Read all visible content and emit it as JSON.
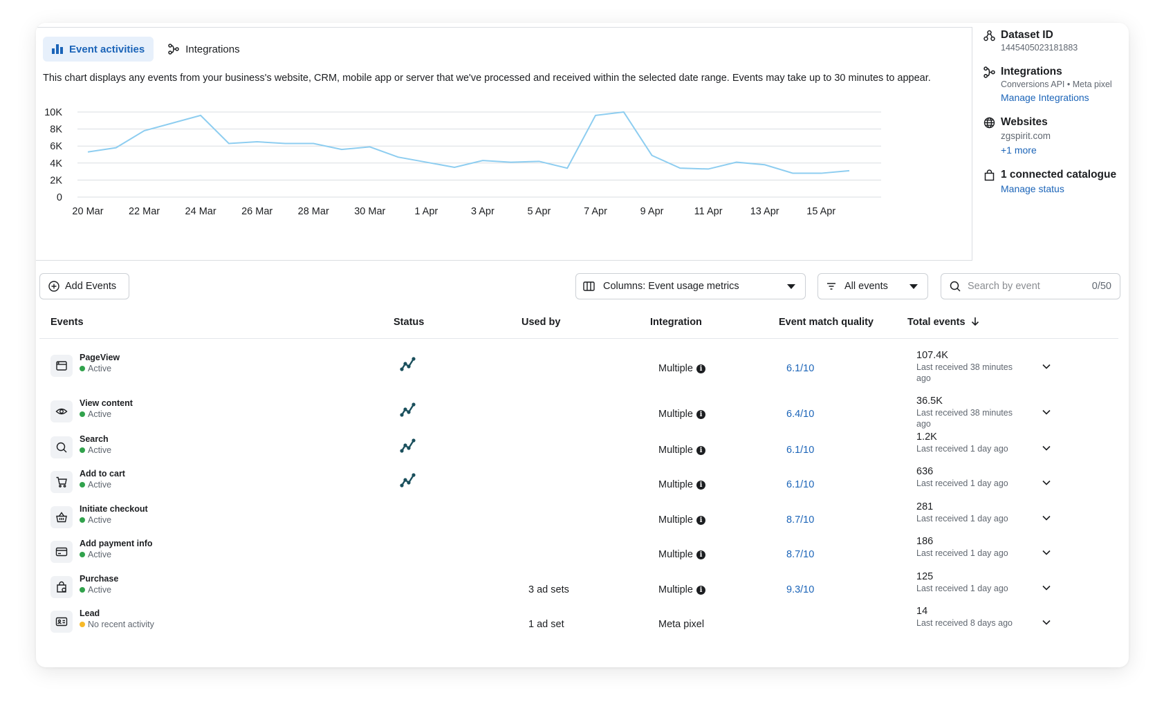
{
  "tabs": [
    {
      "label": "Event activities",
      "icon": "bar-chart-icon"
    },
    {
      "label": "Integrations",
      "icon": "integration-icon"
    }
  ],
  "description": "This chart displays any events from your business's website, CRM, mobile app or server that we've processed and received within the selected date range. Events may take up to 30 minutes to appear.",
  "chart_data": {
    "type": "line",
    "x": [
      "20 Mar",
      "21 Mar",
      "22 Mar",
      "23 Mar",
      "24 Mar",
      "25 Mar",
      "26 Mar",
      "27 Mar",
      "28 Mar",
      "29 Mar",
      "30 Mar",
      "31 Mar",
      "1 Apr",
      "2 Apr",
      "3 Apr",
      "4 Apr",
      "5 Apr",
      "6 Apr",
      "7 Apr",
      "8 Apr",
      "9 Apr",
      "10 Apr",
      "11 Apr",
      "12 Apr",
      "13 Apr",
      "14 Apr",
      "15 Apr",
      "16 Apr"
    ],
    "x_ticks": [
      "20 Mar",
      "22 Mar",
      "24 Mar",
      "26 Mar",
      "28 Mar",
      "30 Mar",
      "1 Apr",
      "3 Apr",
      "5 Apr",
      "7 Apr",
      "9 Apr",
      "11 Apr",
      "13 Apr",
      "15 Apr"
    ],
    "series": [
      {
        "values": [
          5300,
          5800,
          7800,
          8700,
          9600,
          6300,
          6500,
          6300,
          6300,
          5600,
          5900,
          4700,
          4100,
          3500,
          4300,
          4100,
          4200,
          3400,
          9600,
          10000,
          4900,
          3400,
          3300,
          4100,
          3800,
          2800,
          2800,
          3100
        ]
      }
    ],
    "y_ticks": [
      "0",
      "2K",
      "4K",
      "6K",
      "8K",
      "10K"
    ],
    "ylim": [
      0,
      10000
    ],
    "grid": true,
    "line_color": "#8dcdf0"
  },
  "sidebar": {
    "dataset": {
      "title": "Dataset ID",
      "value": "1445405023181883",
      "icon": "dataset-icon"
    },
    "integrations": {
      "title": "Integrations",
      "sub": "Conversions API • Meta pixel",
      "link": "Manage Integrations",
      "icon": "integration-icon"
    },
    "websites": {
      "title": "Websites",
      "value": "zgspirit.com",
      "link": "+1 more",
      "icon": "globe-icon"
    },
    "catalogue": {
      "title": "1 connected catalogue",
      "link": "Manage status",
      "icon": "shopping-bag-icon"
    }
  },
  "toolbar": {
    "add_events": "Add Events",
    "columns": "Columns: Event usage metrics",
    "filter": "All events",
    "search_placeholder": "Search by event",
    "search_count": "0/50"
  },
  "table": {
    "headers": [
      "Events",
      "Status",
      "Used by",
      "Integration",
      "Event match quality",
      "Total events"
    ],
    "rows": [
      {
        "name": "PageView",
        "state": "Active",
        "state_color": "#31a24c",
        "icon": "browser-window-icon",
        "status_icon": true,
        "used_by": "",
        "integration": "Multiple",
        "integration_info": true,
        "emq": "6.1/10",
        "total": "107.4K",
        "last": "Last received 38 minutes ago"
      },
      {
        "name": "View content",
        "state": "Active",
        "state_color": "#31a24c",
        "icon": "eye-icon",
        "status_icon": true,
        "used_by": "",
        "integration": "Multiple",
        "integration_info": true,
        "emq": "6.4/10",
        "total": "36.5K",
        "last": "Last received 38 minutes ago"
      },
      {
        "name": "Search",
        "state": "Active",
        "state_color": "#31a24c",
        "icon": "search-icon",
        "status_icon": true,
        "used_by": "",
        "integration": "Multiple",
        "integration_info": true,
        "emq": "6.1/10",
        "total": "1.2K",
        "last": "Last received 1 day ago"
      },
      {
        "name": "Add to cart",
        "state": "Active",
        "state_color": "#31a24c",
        "icon": "cart-icon",
        "status_icon": true,
        "used_by": "",
        "integration": "Multiple",
        "integration_info": true,
        "emq": "6.1/10",
        "total": "636",
        "last": "Last received 1 day ago"
      },
      {
        "name": "Initiate checkout",
        "state": "Active",
        "state_color": "#31a24c",
        "icon": "basket-icon",
        "status_icon": false,
        "used_by": "",
        "integration": "Multiple",
        "integration_info": true,
        "emq": "8.7/10",
        "total": "281",
        "last": "Last received 1 day ago"
      },
      {
        "name": "Add payment info",
        "state": "Active",
        "state_color": "#31a24c",
        "icon": "credit-card-icon",
        "status_icon": false,
        "used_by": "",
        "integration": "Multiple",
        "integration_info": true,
        "emq": "8.7/10",
        "total": "186",
        "last": "Last received 1 day ago"
      },
      {
        "name": "Purchase",
        "state": "Active",
        "state_color": "#31a24c",
        "icon": "shopping-bag-icon",
        "status_icon": false,
        "used_by": "3 ad sets",
        "integration": "Multiple",
        "integration_info": true,
        "emq": "9.3/10",
        "total": "125",
        "last": "Last received 1 day ago"
      },
      {
        "name": "Lead",
        "state": "No recent activity",
        "state_color": "#f7b928",
        "icon": "id-card-icon",
        "status_icon": false,
        "used_by": "1 ad set",
        "integration": "Meta pixel",
        "integration_info": false,
        "emq": "",
        "total": "14",
        "last": "Last received 8 days ago"
      }
    ]
  }
}
